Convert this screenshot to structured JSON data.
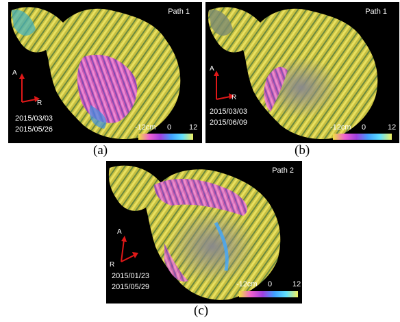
{
  "panels": [
    {
      "path": "Path 1",
      "date1": "2015/03/03",
      "date2": "2015/05/26",
      "axis_top": "A",
      "axis_side": "R",
      "scale_min": "-12cm",
      "scale_mid": "0",
      "scale_max": "12",
      "caption": "(a)"
    },
    {
      "path": "Path 1",
      "date1": "2015/03/03",
      "date2": "2015/06/09",
      "axis_top": "A",
      "axis_side": "R",
      "scale_min": "-12cm",
      "scale_mid": "0",
      "scale_max": "12",
      "caption": "(b)"
    },
    {
      "path": "Path 2",
      "date1": "2015/01/23",
      "date2": "2015/05/29",
      "axis_top": "A",
      "axis_side": "R",
      "scale_min": "-12cm",
      "scale_mid": "0",
      "scale_max": "12",
      "caption": "(c)"
    }
  ],
  "colors": {
    "background": "#000000",
    "arrow": "#e01818",
    "colorbar_stops": [
      "#f0e040",
      "#f060d0",
      "#a040e0",
      "#40a0ff",
      "#60e0ff",
      "#f0f060"
    ]
  }
}
